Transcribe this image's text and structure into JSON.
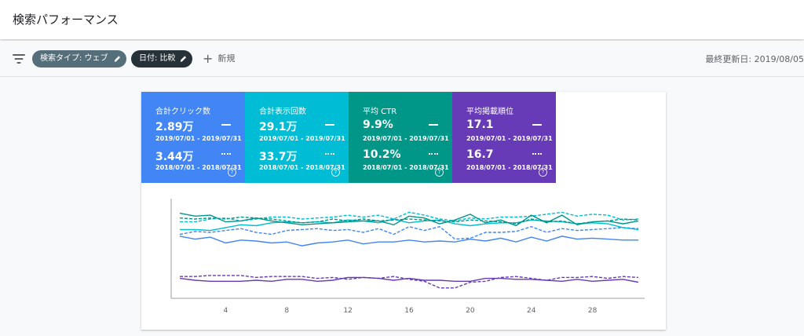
{
  "header": {
    "title": "検索パフォーマンス"
  },
  "filters": {
    "type_chip": "検索タイプ: ウェブ",
    "date_chip": "日付: 比較",
    "new_label": "新規",
    "last_updated": "最終更新日: 2019/08/05"
  },
  "metrics": [
    {
      "name": "合計クリック数",
      "current": "2.89万",
      "current_range": "2019/07/01 - 2019/07/31",
      "previous": "3.44万",
      "previous_range": "2018/07/01 - 2018/07/31",
      "color": "#4285f4"
    },
    {
      "name": "合計表示回数",
      "current": "29.1万",
      "current_range": "2019/07/01 - 2019/07/31",
      "previous": "33.7万",
      "previous_range": "2018/07/01 - 2018/07/31",
      "color": "#00bcd4"
    },
    {
      "name": "平均 CTR",
      "current": "9.9%",
      "current_range": "2019/07/01 - 2019/07/31",
      "previous": "10.2%",
      "previous_range": "2018/07/01 - 2018/07/31",
      "color": "#009688"
    },
    {
      "name": "平均掲載順位",
      "current": "17.1",
      "current_range": "2019/07/01 - 2019/07/31",
      "previous": "16.7",
      "previous_range": "2018/07/01 - 2018/07/31",
      "color": "#673ab7"
    }
  ],
  "help_glyph": "?",
  "chart_data": {
    "type": "line",
    "x": [
      1,
      2,
      3,
      4,
      5,
      6,
      7,
      8,
      9,
      10,
      11,
      12,
      13,
      14,
      15,
      16,
      17,
      18,
      19,
      20,
      21,
      22,
      23,
      24,
      25,
      26,
      27,
      28,
      29,
      30,
      31
    ],
    "x_ticks": [
      "4",
      "8",
      "12",
      "16",
      "20",
      "24",
      "28"
    ],
    "xlim": [
      1,
      31
    ],
    "ylim": [
      0,
      100
    ],
    "grid": false,
    "series": [
      {
        "color": "#4285f4",
        "dash": false,
        "values": [
          64,
          61,
          63,
          57,
          60,
          59,
          57,
          58,
          54,
          57,
          58,
          60,
          56,
          58,
          58,
          60,
          58,
          59,
          58,
          61,
          59,
          62,
          58,
          63,
          59,
          64,
          61,
          62,
          61,
          60,
          60
        ]
      },
      {
        "color": "#4285f4",
        "dash": true,
        "values": [
          66,
          69,
          68,
          70,
          72,
          68,
          66,
          70,
          71,
          72,
          70,
          71,
          68,
          72,
          66,
          74,
          70,
          74,
          61,
          62,
          68,
          68,
          69,
          74,
          68,
          72,
          70,
          71,
          72,
          73,
          72
        ]
      },
      {
        "color": "#00bcd4",
        "dash": false,
        "values": [
          71,
          71,
          70,
          73,
          76,
          75,
          78,
          79,
          78,
          79,
          78,
          81,
          80,
          78,
          82,
          78,
          80,
          81,
          77,
          75,
          77,
          78,
          78,
          81,
          80,
          79,
          77,
          78,
          77,
          73,
          71
        ]
      },
      {
        "color": "#00bcd4",
        "dash": true,
        "values": [
          79,
          79,
          82,
          83,
          80,
          82,
          84,
          84,
          82,
          83,
          84,
          86,
          84,
          86,
          82,
          89,
          86,
          82,
          80,
          83,
          82,
          84,
          84,
          85,
          87,
          89,
          85,
          87,
          86,
          81,
          82
        ]
      },
      {
        "color": "#009688",
        "dash": false,
        "values": [
          88,
          85,
          86,
          79,
          80,
          83,
          80,
          78,
          76,
          77,
          78,
          79,
          80,
          80,
          76,
          85,
          83,
          77,
          81,
          87,
          78,
          81,
          75,
          86,
          78,
          86,
          76,
          79,
          80,
          77,
          80
        ]
      },
      {
        "color": "#009688",
        "dash": true,
        "values": [
          83,
          82,
          83,
          82,
          84,
          83,
          82,
          80,
          78,
          79,
          82,
          80,
          82,
          80,
          81,
          82,
          81,
          80,
          79,
          81,
          80,
          79,
          77,
          82,
          79,
          80,
          77,
          79,
          80,
          82,
          81
        ]
      },
      {
        "color": "#673ab7",
        "dash": false,
        "values": [
          20,
          18,
          17,
          17,
          17,
          18,
          17,
          19,
          19,
          17,
          18,
          21,
          21,
          20,
          18,
          20,
          18,
          18,
          17,
          17,
          20,
          20,
          19,
          19,
          18,
          17,
          19,
          17,
          18,
          19,
          16
        ]
      },
      {
        "color": "#673ab7",
        "dash": true,
        "values": [
          22,
          22,
          23,
          23,
          23,
          21,
          22,
          22,
          22,
          20,
          21,
          19,
          21,
          20,
          22,
          19,
          17,
          10,
          10,
          16,
          17,
          21,
          22,
          20,
          18,
          21,
          21,
          22,
          20,
          22,
          21
        ]
      }
    ]
  }
}
